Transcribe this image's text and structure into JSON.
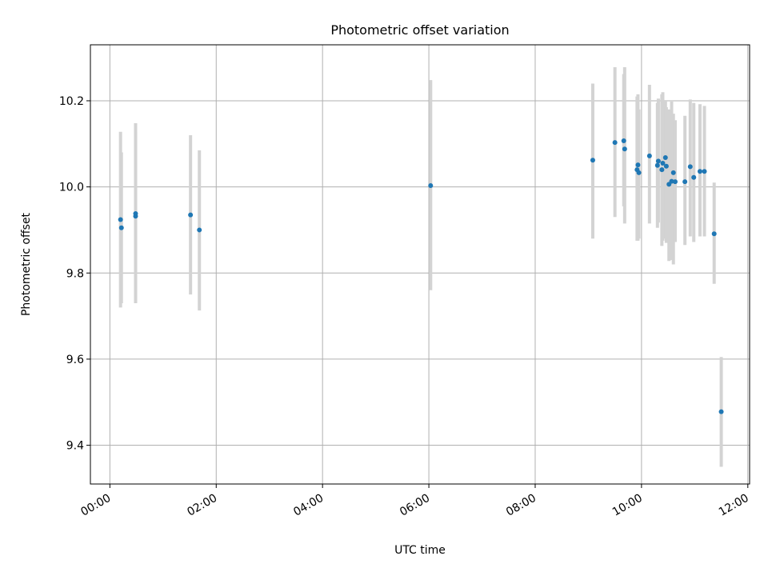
{
  "chart_data": {
    "type": "scatter",
    "title": "Photometric offset variation",
    "xlabel": "UTC time",
    "ylabel": "Photometric offset",
    "x_axis": "time",
    "xlim": [
      "-00:22",
      "12:02"
    ],
    "ylim": [
      9.31,
      10.33
    ],
    "xticks": [
      "00:00",
      "02:00",
      "04:00",
      "06:00",
      "08:00",
      "10:00",
      "12:00"
    ],
    "yticks": [
      9.4,
      9.6,
      9.8,
      10.0,
      10.2
    ],
    "grid": true,
    "errorbar_color": "#d3d3d3",
    "marker_color": "#1f77b4",
    "points": [
      {
        "time": "00:12",
        "y": 9.924,
        "lo": 9.72,
        "hi": 10.128
      },
      {
        "time": "00:13",
        "y": 9.905,
        "lo": 9.73,
        "hi": 10.08
      },
      {
        "time": "00:29",
        "y": 9.938,
        "lo": 9.73,
        "hi": 10.148
      },
      {
        "time": "00:29",
        "y": 9.932,
        "lo": 9.73,
        "hi": 10.128
      },
      {
        "time": "01:31",
        "y": 9.935,
        "lo": 9.75,
        "hi": 10.12
      },
      {
        "time": "01:41",
        "y": 9.9,
        "lo": 9.713,
        "hi": 10.085
      },
      {
        "time": "06:02",
        "y": 10.003,
        "lo": 9.76,
        "hi": 10.248
      },
      {
        "time": "09:05",
        "y": 10.062,
        "lo": 9.88,
        "hi": 10.24
      },
      {
        "time": "09:30",
        "y": 10.103,
        "lo": 9.93,
        "hi": 10.278
      },
      {
        "time": "09:40",
        "y": 10.107,
        "lo": 9.955,
        "hi": 10.262
      },
      {
        "time": "09:41",
        "y": 10.088,
        "lo": 9.915,
        "hi": 10.278
      },
      {
        "time": "09:55",
        "y": 10.04,
        "lo": 9.875,
        "hi": 10.21
      },
      {
        "time": "09:56",
        "y": 10.051,
        "lo": 9.875,
        "hi": 10.215
      },
      {
        "time": "09:57",
        "y": 10.033,
        "lo": 9.88,
        "hi": 10.18
      },
      {
        "time": "10:09",
        "y": 10.072,
        "lo": 9.915,
        "hi": 10.237
      },
      {
        "time": "10:18",
        "y": 10.05,
        "lo": 9.905,
        "hi": 10.195
      },
      {
        "time": "10:19",
        "y": 10.06,
        "lo": 9.917,
        "hi": 10.205
      },
      {
        "time": "10:23",
        "y": 10.04,
        "lo": 9.863,
        "hi": 10.215
      },
      {
        "time": "10:24",
        "y": 10.055,
        "lo": 9.875,
        "hi": 10.22
      },
      {
        "time": "10:27",
        "y": 10.068,
        "lo": 9.88,
        "hi": 10.2
      },
      {
        "time": "10:28",
        "y": 10.048,
        "lo": 9.87,
        "hi": 10.185
      },
      {
        "time": "10:31",
        "y": 10.006,
        "lo": 9.828,
        "hi": 10.18
      },
      {
        "time": "10:34",
        "y": 10.013,
        "lo": 9.83,
        "hi": 10.198
      },
      {
        "time": "10:36",
        "y": 10.033,
        "lo": 9.82,
        "hi": 10.17
      },
      {
        "time": "10:38",
        "y": 10.012,
        "lo": 9.872,
        "hi": 10.155
      },
      {
        "time": "10:49",
        "y": 10.012,
        "lo": 9.865,
        "hi": 10.165
      },
      {
        "time": "10:55",
        "y": 10.047,
        "lo": 9.885,
        "hi": 10.203
      },
      {
        "time": "10:59",
        "y": 10.022,
        "lo": 9.872,
        "hi": 10.195
      },
      {
        "time": "11:06",
        "y": 10.036,
        "lo": 9.885,
        "hi": 10.192
      },
      {
        "time": "11:11",
        "y": 10.036,
        "lo": 9.885,
        "hi": 10.188
      },
      {
        "time": "11:22",
        "y": 9.891,
        "lo": 9.775,
        "hi": 10.01
      },
      {
        "time": "11:30",
        "y": 9.478,
        "lo": 9.35,
        "hi": 9.605
      }
    ]
  }
}
